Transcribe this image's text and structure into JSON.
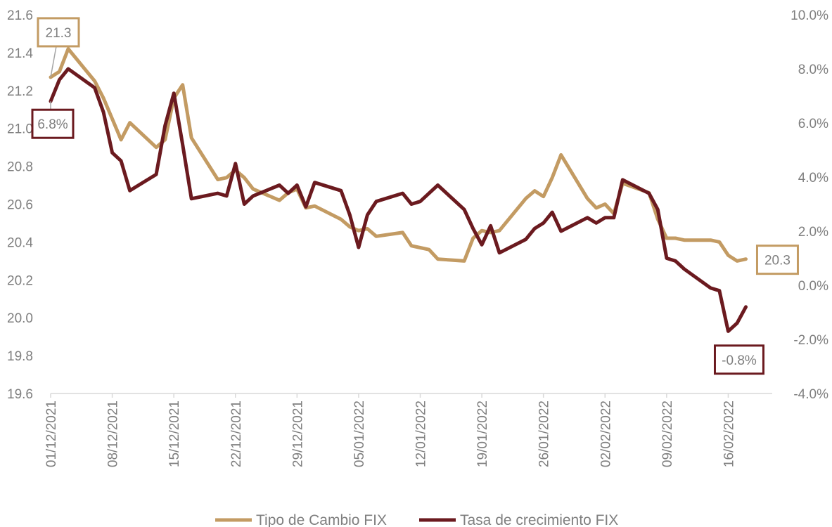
{
  "chart_data": {
    "type": "line",
    "title": "",
    "xlabel": "",
    "ylabel_left": "",
    "ylabel_right": "",
    "grid": false,
    "legend_position": "bottom",
    "x_start": "01/12/2021",
    "x_end": "21/02/2022",
    "x_tick_labels": [
      "01/12/2021",
      "08/12/2021",
      "15/12/2021",
      "22/12/2021",
      "29/12/2021",
      "05/01/2022",
      "12/01/2022",
      "19/01/2022",
      "26/01/2022",
      "02/02/2022",
      "09/02/2022",
      "16/02/2022"
    ],
    "y_left": {
      "min": 19.6,
      "max": 21.6,
      "step": 0.2,
      "tick_labels": [
        "19.6",
        "19.8",
        "20.0",
        "20.2",
        "20.4",
        "20.6",
        "20.8",
        "21.0",
        "21.2",
        "21.4",
        "21.6"
      ]
    },
    "y_right": {
      "min": -4.0,
      "max": 10.0,
      "step": 2.0,
      "tick_labels": [
        "-4.0%",
        "-2.0%",
        "0.0%",
        "2.0%",
        "4.0%",
        "6.0%",
        "8.0%",
        "10.0%"
      ]
    },
    "series": [
      {
        "name": "Tipo de Cambio FIX",
        "axis": "left",
        "color": "#c39b63",
        "points": [
          [
            "01/12/2021",
            21.27
          ],
          [
            "02/12/2021",
            21.3
          ],
          [
            "03/12/2021",
            21.42
          ],
          [
            "06/12/2021",
            21.25
          ],
          [
            "07/12/2021",
            21.16
          ],
          [
            "08/12/2021",
            21.05
          ],
          [
            "09/12/2021",
            20.94
          ],
          [
            "10/12/2021",
            21.03
          ],
          [
            "13/12/2021",
            20.9
          ],
          [
            "14/12/2021",
            20.94
          ],
          [
            "15/12/2021",
            21.16
          ],
          [
            "16/12/2021",
            21.23
          ],
          [
            "17/12/2021",
            20.95
          ],
          [
            "20/12/2021",
            20.73
          ],
          [
            "21/12/2021",
            20.74
          ],
          [
            "22/12/2021",
            20.78
          ],
          [
            "23/12/2021",
            20.74
          ],
          [
            "24/12/2021",
            20.68
          ],
          [
            "27/12/2021",
            20.62
          ],
          [
            "28/12/2021",
            20.66
          ],
          [
            "29/12/2021",
            20.68
          ],
          [
            "30/12/2021",
            20.58
          ],
          [
            "31/12/2021",
            20.59
          ],
          [
            "03/01/2022",
            20.52
          ],
          [
            "04/01/2022",
            20.48
          ],
          [
            "05/01/2022",
            20.46
          ],
          [
            "06/01/2022",
            20.47
          ],
          [
            "07/01/2022",
            20.43
          ],
          [
            "10/01/2022",
            20.45
          ],
          [
            "11/01/2022",
            20.38
          ],
          [
            "12/01/2022",
            20.37
          ],
          [
            "13/01/2022",
            20.36
          ],
          [
            "14/01/2022",
            20.31
          ],
          [
            "17/01/2022",
            20.3
          ],
          [
            "18/01/2022",
            20.42
          ],
          [
            "19/01/2022",
            20.46
          ],
          [
            "20/01/2022",
            20.45
          ],
          [
            "21/01/2022",
            20.46
          ],
          [
            "24/01/2022",
            20.63
          ],
          [
            "25/01/2022",
            20.67
          ],
          [
            "26/01/2022",
            20.64
          ],
          [
            "27/01/2022",
            20.74
          ],
          [
            "28/01/2022",
            20.86
          ],
          [
            "31/01/2022",
            20.63
          ],
          [
            "01/02/2022",
            20.58
          ],
          [
            "02/02/2022",
            20.6
          ],
          [
            "03/02/2022",
            20.55
          ],
          [
            "04/02/2022",
            20.71
          ],
          [
            "07/02/2022",
            20.66
          ],
          [
            "08/02/2022",
            20.52
          ],
          [
            "09/02/2022",
            20.42
          ],
          [
            "10/02/2022",
            20.42
          ],
          [
            "11/02/2022",
            20.41
          ],
          [
            "14/02/2022",
            20.41
          ],
          [
            "15/02/2022",
            20.4
          ],
          [
            "16/02/2022",
            20.33
          ],
          [
            "17/02/2022",
            20.3
          ],
          [
            "18/02/2022",
            20.31
          ]
        ]
      },
      {
        "name": "Tasa de crecimiento FIX",
        "axis": "right",
        "color": "#6b1a1f",
        "points": [
          [
            "01/12/2021",
            6.8
          ],
          [
            "02/12/2021",
            7.6
          ],
          [
            "03/12/2021",
            8.0
          ],
          [
            "06/12/2021",
            7.3
          ],
          [
            "07/12/2021",
            6.4
          ],
          [
            "08/12/2021",
            4.9
          ],
          [
            "09/12/2021",
            4.6
          ],
          [
            "10/12/2021",
            3.5
          ],
          [
            "13/12/2021",
            4.1
          ],
          [
            "14/12/2021",
            5.9
          ],
          [
            "15/12/2021",
            7.1
          ],
          [
            "16/12/2021",
            5.2
          ],
          [
            "17/12/2021",
            3.2
          ],
          [
            "20/12/2021",
            3.4
          ],
          [
            "21/12/2021",
            3.3
          ],
          [
            "22/12/2021",
            4.5
          ],
          [
            "23/12/2021",
            3.0
          ],
          [
            "24/12/2021",
            3.3
          ],
          [
            "27/12/2021",
            3.7
          ],
          [
            "28/12/2021",
            3.4
          ],
          [
            "29/12/2021",
            3.7
          ],
          [
            "30/12/2021",
            2.9
          ],
          [
            "31/12/2021",
            3.8
          ],
          [
            "03/01/2022",
            3.5
          ],
          [
            "04/01/2022",
            2.6
          ],
          [
            "05/01/2022",
            1.4
          ],
          [
            "06/01/2022",
            2.6
          ],
          [
            "07/01/2022",
            3.1
          ],
          [
            "10/01/2022",
            3.4
          ],
          [
            "11/01/2022",
            3.0
          ],
          [
            "12/01/2022",
            3.1
          ],
          [
            "13/01/2022",
            3.4
          ],
          [
            "14/01/2022",
            3.7
          ],
          [
            "17/01/2022",
            2.8
          ],
          [
            "18/01/2022",
            2.1
          ],
          [
            "19/01/2022",
            1.5
          ],
          [
            "20/01/2022",
            2.2
          ],
          [
            "21/01/2022",
            1.2
          ],
          [
            "24/01/2022",
            1.7
          ],
          [
            "25/01/2022",
            2.1
          ],
          [
            "26/01/2022",
            2.3
          ],
          [
            "27/01/2022",
            2.7
          ],
          [
            "28/01/2022",
            2.0
          ],
          [
            "31/01/2022",
            2.5
          ],
          [
            "01/02/2022",
            2.3
          ],
          [
            "02/02/2022",
            2.5
          ],
          [
            "03/02/2022",
            2.5
          ],
          [
            "04/02/2022",
            3.9
          ],
          [
            "07/02/2022",
            3.4
          ],
          [
            "08/02/2022",
            2.8
          ],
          [
            "09/02/2022",
            1.0
          ],
          [
            "10/02/2022",
            0.9
          ],
          [
            "11/02/2022",
            0.6
          ],
          [
            "14/02/2022",
            -0.1
          ],
          [
            "15/02/2022",
            -0.2
          ],
          [
            "16/02/2022",
            -1.7
          ],
          [
            "17/02/2022",
            -1.4
          ],
          [
            "18/02/2022",
            -0.8
          ]
        ]
      }
    ],
    "annotations": [
      {
        "series": "Tipo de Cambio FIX",
        "text": "21.3",
        "at": "first",
        "color": "#c39b63"
      },
      {
        "series": "Tasa de crecimiento FIX",
        "text": "6.8%",
        "at": "first",
        "color": "#6b1a1f"
      },
      {
        "series": "Tipo de Cambio FIX",
        "text": "20.3",
        "at": "last",
        "color": "#c39b63"
      },
      {
        "series": "Tasa de crecimiento FIX",
        "text": "-0.8%",
        "at": "last",
        "color": "#6b1a1f"
      }
    ]
  }
}
